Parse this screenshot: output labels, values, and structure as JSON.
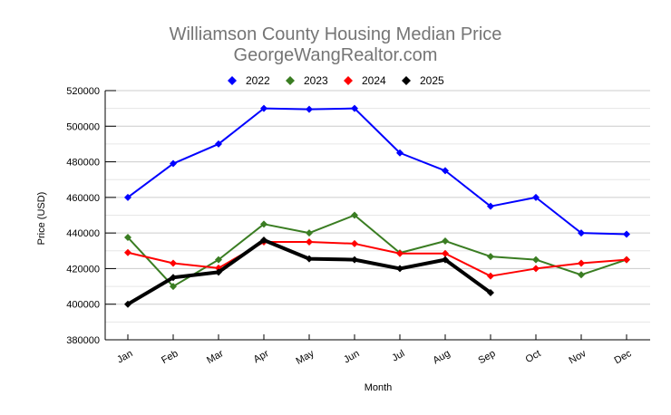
{
  "chart_data": {
    "type": "line",
    "title": "Williamson County Housing Median Price",
    "subtitle": "GeorgeWangRealtor.com",
    "xlabel": "Month",
    "ylabel": "Price (USD)",
    "ylim": [
      380000,
      520000
    ],
    "yticks": [
      "380000",
      "400000",
      "420000",
      "440000",
      "460000",
      "480000",
      "500000",
      "520000"
    ],
    "ytick_values": [
      380000,
      400000,
      420000,
      440000,
      460000,
      480000,
      500000,
      520000
    ],
    "minor_grid_values": [
      390000,
      410000,
      430000,
      450000,
      470000,
      490000,
      510000
    ],
    "grid": true,
    "legend_position": "top-center",
    "categories": [
      "Jan",
      "Feb",
      "Mar",
      "Apr",
      "May",
      "Jun",
      "Jul",
      "Aug",
      "Sep",
      "Oct",
      "Nov",
      "Dec"
    ],
    "series": [
      {
        "name": "2022",
        "color": "#0000ff",
        "width": 2,
        "values": [
          460000,
          479000,
          490000,
          510000,
          509500,
          510000,
          485000,
          475000,
          455000,
          460000,
          440000,
          439300
        ]
      },
      {
        "name": "2023",
        "color": "#3a7d22",
        "width": 2,
        "values": [
          437500,
          410000,
          425000,
          445000,
          440000,
          450000,
          428800,
          435500,
          426800,
          425000,
          416500,
          425000
        ]
      },
      {
        "name": "2024",
        "color": "#ff0000",
        "width": 2,
        "values": [
          429000,
          423000,
          420300,
          435000,
          435000,
          434000,
          428500,
          428500,
          415800,
          420000,
          423000,
          425000
        ]
      },
      {
        "name": "2025",
        "color": "#000000",
        "width": 4,
        "values": [
          400000,
          415000,
          418000,
          436000,
          425500,
          425000,
          420000,
          425000,
          406500,
          null,
          null,
          null
        ]
      }
    ]
  }
}
